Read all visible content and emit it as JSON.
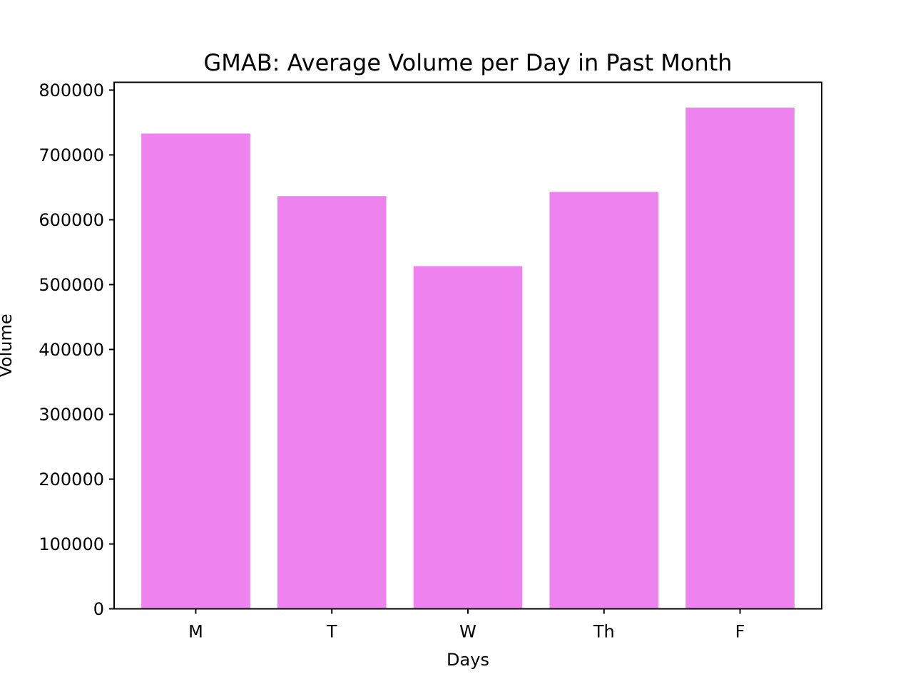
{
  "chart_data": {
    "type": "bar",
    "title": "GMAB: Average Volume per Day in Past Month",
    "xlabel": "Days",
    "ylabel": "Volume",
    "categories": [
      "M",
      "T",
      "W",
      "Th",
      "F"
    ],
    "values": [
      733000,
      636500,
      528500,
      643000,
      773000
    ],
    "ylim": [
      0,
      812000
    ],
    "yticks": [
      0,
      100000,
      200000,
      300000,
      400000,
      500000,
      600000,
      700000,
      800000
    ],
    "ytick_labels": [
      "0",
      "100000",
      "200000",
      "300000",
      "400000",
      "500000",
      "600000",
      "700000",
      "800000"
    ],
    "bar_color": "#ee82ee",
    "grid": false,
    "legend": false
  }
}
